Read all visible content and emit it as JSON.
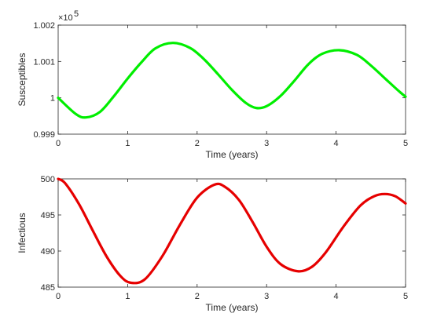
{
  "chart_data": [
    {
      "type": "line",
      "xlabel": "Time (years)",
      "ylabel": "Susceptibles",
      "multiplier": "×10",
      "multiplier_exp": "5",
      "xlim": [
        0,
        5
      ],
      "ylim": [
        0.999,
        1.002
      ],
      "xticks": [
        0,
        1,
        2,
        3,
        4,
        5
      ],
      "yticks": [
        0.999,
        1,
        1.001,
        1.002
      ],
      "ytick_labels": [
        "0.999",
        "1",
        "1.001",
        "1.002"
      ],
      "color": "#00ee00",
      "series": [
        {
          "x": [
            0,
            0.25,
            0.4,
            0.6,
            0.8,
            1.0,
            1.2,
            1.4,
            1.65,
            1.9,
            2.1,
            2.3,
            2.5,
            2.7,
            2.85,
            3.0,
            3.2,
            3.4,
            3.6,
            3.8,
            4.05,
            4.3,
            4.5,
            4.7,
            4.9,
            5.0
          ],
          "y": [
            1.0,
            0.99956,
            0.99946,
            0.99961,
            1.00004,
            1.00053,
            1.00098,
            1.00136,
            1.00151,
            1.00137,
            1.00106,
            1.00065,
            1.00022,
            0.99986,
            0.99972,
            0.99977,
            1.00005,
            1.00047,
            1.00092,
            1.00121,
            1.00131,
            1.00118,
            1.00089,
            1.00054,
            1.00019,
            1.00003
          ]
        }
      ]
    },
    {
      "type": "line",
      "xlabel": "Time (years)",
      "ylabel": "Infectious",
      "xlim": [
        0,
        5
      ],
      "ylim": [
        485,
        500
      ],
      "xticks": [
        0,
        1,
        2,
        3,
        4,
        5
      ],
      "yticks": [
        485,
        490,
        495,
        500
      ],
      "ytick_labels": [
        "485",
        "490",
        "495",
        "500"
      ],
      "color": "#e60000",
      "series": [
        {
          "x": [
            0,
            0.1,
            0.3,
            0.5,
            0.7,
            0.9,
            1.05,
            1.25,
            1.5,
            1.75,
            2.0,
            2.25,
            2.4,
            2.6,
            2.8,
            3.0,
            3.2,
            3.45,
            3.65,
            3.85,
            4.1,
            4.35,
            4.55,
            4.7,
            4.85,
            5.0
          ],
          "y": [
            500,
            499.4,
            496.5,
            492.8,
            489.2,
            486.5,
            485.6,
            486.1,
            489.3,
            493.6,
            497.4,
            499.2,
            498.9,
            497.1,
            494.0,
            490.6,
            488.2,
            487.2,
            487.8,
            489.8,
            493.3,
            496.3,
            497.6,
            497.9,
            497.6,
            496.6
          ]
        }
      ]
    }
  ]
}
